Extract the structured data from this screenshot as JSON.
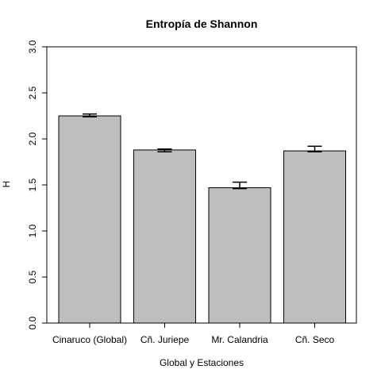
{
  "chart_data": {
    "type": "bar",
    "title": "Entropía de Shannon",
    "xlabel": "Global y Estaciones",
    "ylabel": "H",
    "categories": [
      "Cinaruco (Global)",
      "Cñ. Juriepe",
      "Mr. Calandria",
      "Cñ. Seco"
    ],
    "values": [
      2.25,
      1.88,
      1.47,
      1.87
    ],
    "error_low": [
      2.24,
      1.86,
      1.46,
      1.86
    ],
    "error_high": [
      2.27,
      1.89,
      1.53,
      1.92
    ],
    "ylim": [
      0,
      3.0
    ],
    "yticks": [
      "0.0",
      "0.5",
      "1.0",
      "1.5",
      "2.0",
      "2.5",
      "3.0"
    ],
    "grid": false,
    "colors": {
      "bar_fill": "#bebebe",
      "bar_stroke": "#000000",
      "axis": "#000000"
    }
  }
}
